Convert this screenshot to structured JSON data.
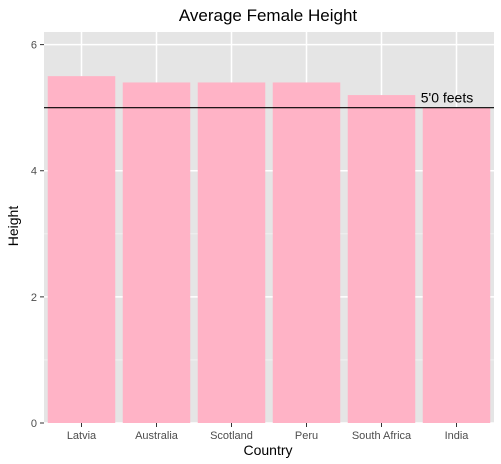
{
  "chart_data": {
    "type": "bar",
    "title": "Average Female Height",
    "xlabel": "Country",
    "ylabel": "Height",
    "categories": [
      "Latvia",
      "Australia",
      "Scotland",
      "Peru",
      "South Africa",
      "India"
    ],
    "values": [
      5.5,
      5.4,
      5.4,
      5.4,
      5.2,
      5.0
    ],
    "ylim": [
      0,
      6.2
    ],
    "yticks": [
      0,
      2,
      4,
      6
    ],
    "reference_line": {
      "value": 5.0,
      "label": "5'0 feets",
      "color": "#000000"
    },
    "bar_color": "#ffb3c6",
    "panel_background": "#e5e5e5",
    "grid": true,
    "legend": "none"
  }
}
